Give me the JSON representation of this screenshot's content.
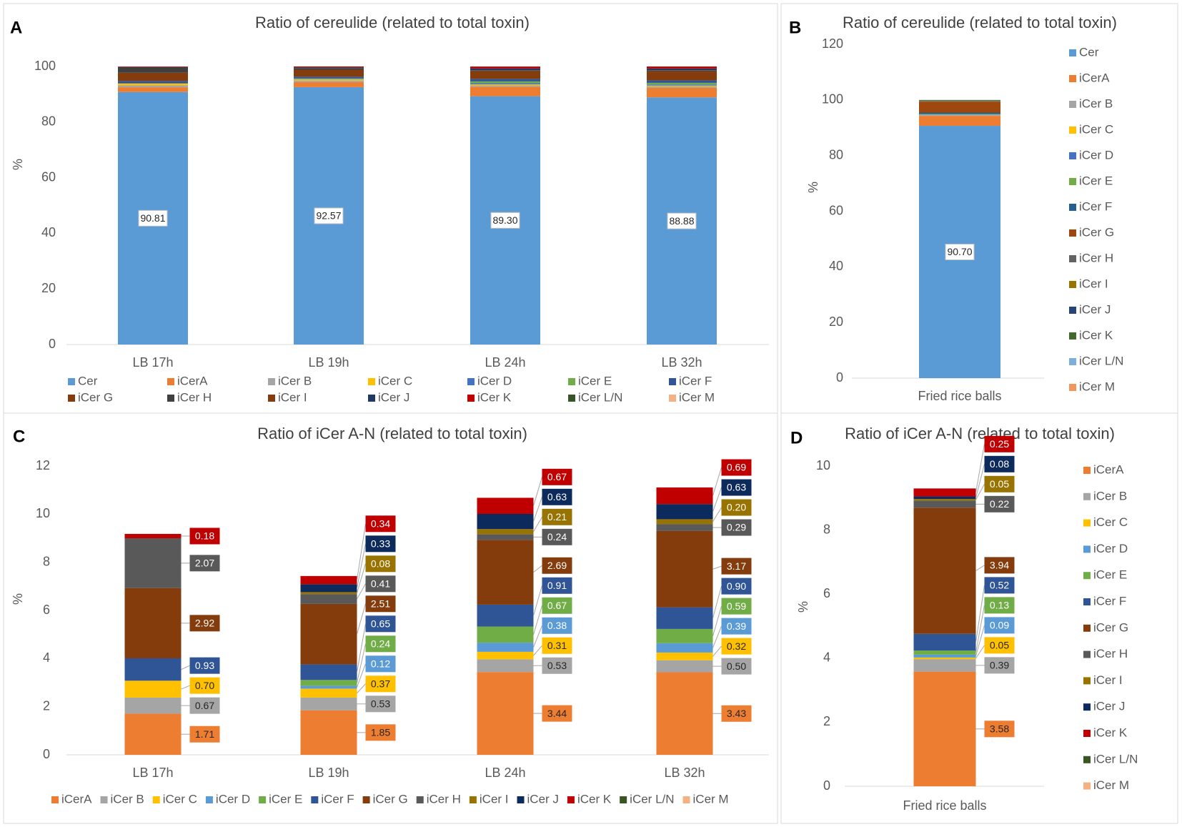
{
  "chart_data": [
    {
      "type": "bar",
      "stacked": true,
      "panel": "A",
      "title": "Ratio of cereulide (related to total toxin)",
      "y_label": "%",
      "categories": [
        "LB 17h",
        "LB 19h",
        "LB 24h",
        "LB 32h"
      ],
      "ylim": [
        0,
        100
      ],
      "yticks": [
        0,
        20,
        40,
        60,
        80,
        100
      ],
      "grid": false,
      "legend": "bottom",
      "series": [
        {
          "name": "Cer",
          "color": "#5b9bd5",
          "values": [
            90.81,
            92.57,
            89.3,
            88.88
          ],
          "value_labels": [
            "90.81",
            "92.57",
            "89.30",
            "88.88"
          ]
        },
        {
          "name": "iCerA",
          "color": "#ed7d31",
          "values": [
            1.71,
            1.85,
            3.44,
            3.43
          ]
        },
        {
          "name": "iCer B",
          "color": "#a5a5a5",
          "values": [
            0.67,
            0.53,
            0.53,
            0.5
          ]
        },
        {
          "name": "iCer C",
          "color": "#ffc000",
          "values": [
            0.7,
            0.37,
            0.31,
            0.32
          ]
        },
        {
          "name": "iCer D",
          "color": "#4472c4",
          "values": [
            0,
            0.12,
            0.38,
            0.39
          ]
        },
        {
          "name": "iCer E",
          "color": "#70ad47",
          "values": [
            0,
            0.24,
            0.67,
            0.59
          ]
        },
        {
          "name": "iCer F",
          "color": "#2f5597",
          "values": [
            0.93,
            0.65,
            0.91,
            0.9
          ]
        },
        {
          "name": "iCer G",
          "color": "#843c0c",
          "values": [
            2.92,
            2.51,
            2.69,
            3.17
          ]
        },
        {
          "name": "iCer H",
          "color": "#404040",
          "values": [
            2.07,
            0.41,
            0.24,
            0.29
          ]
        },
        {
          "name": "iCer I",
          "color": "#843c0c",
          "values": [
            0,
            0.08,
            0.21,
            0.2
          ]
        },
        {
          "name": "iCer J",
          "color": "#1f3864",
          "values": [
            0,
            0.33,
            0.63,
            0.63
          ]
        },
        {
          "name": "iCer K",
          "color": "#c00000",
          "values": [
            0.18,
            0.34,
            0.67,
            0.69
          ]
        },
        {
          "name": "iCer L/N",
          "color": "#375623",
          "values": [
            0,
            0,
            0,
            0
          ]
        },
        {
          "name": "iCer M",
          "color": "#f4b183",
          "values": [
            0,
            0,
            0,
            0
          ]
        }
      ]
    },
    {
      "type": "bar",
      "stacked": true,
      "panel": "B",
      "title": "Ratio of cereulide (related to total toxin)",
      "y_label": "%",
      "categories": [
        "Fried rice balls"
      ],
      "ylim": [
        0,
        120
      ],
      "yticks": [
        0,
        20,
        40,
        60,
        80,
        100,
        120
      ],
      "grid": false,
      "legend": "right",
      "series": [
        {
          "name": "Cer",
          "color": "#5b9bd5",
          "values": [
            90.7
          ],
          "value_labels": [
            "90.70"
          ]
        },
        {
          "name": "iCerA",
          "color": "#ed7d31",
          "values": [
            3.58
          ]
        },
        {
          "name": "iCer B",
          "color": "#a5a5a5",
          "values": [
            0.39
          ]
        },
        {
          "name": "iCer C",
          "color": "#ffc000",
          "values": [
            0.05
          ]
        },
        {
          "name": "iCer D",
          "color": "#4472c4",
          "values": [
            0.09
          ]
        },
        {
          "name": "iCer E",
          "color": "#70ad47",
          "values": [
            0.13
          ]
        },
        {
          "name": "iCer F",
          "color": "#255e91",
          "values": [
            0.52
          ]
        },
        {
          "name": "iCer G",
          "color": "#9e480e",
          "values": [
            3.94
          ]
        },
        {
          "name": "iCer H",
          "color": "#636363",
          "values": [
            0.22
          ]
        },
        {
          "name": "iCer I",
          "color": "#997300",
          "values": [
            0.05
          ]
        },
        {
          "name": "iCer J",
          "color": "#264478",
          "values": [
            0.08
          ]
        },
        {
          "name": "iCer K",
          "color": "#43682b",
          "values": [
            0.25
          ]
        },
        {
          "name": "iCer L/N",
          "color": "#7cafdd",
          "values": [
            0
          ]
        },
        {
          "name": "iCer M",
          "color": "#f1975a",
          "values": [
            0
          ]
        }
      ]
    },
    {
      "type": "bar",
      "stacked": true,
      "panel": "C",
      "title": "Ratio of iCer A-N (related to total toxin)",
      "y_label": "%",
      "categories": [
        "LB 17h",
        "LB 19h",
        "LB 24h",
        "LB 32h"
      ],
      "ylim": [
        0,
        12
      ],
      "yticks": [
        0,
        2,
        4,
        6,
        8,
        10,
        12
      ],
      "grid": false,
      "legend": "bottom",
      "series": [
        {
          "name": "iCerA",
          "color": "#ed7d31",
          "values": [
            1.71,
            1.85,
            3.44,
            3.43
          ],
          "value_labels": [
            "1.71",
            "1.85",
            "3.44",
            "3.43"
          ]
        },
        {
          "name": "iCer B",
          "color": "#a5a5a5",
          "values": [
            0.67,
            0.53,
            0.53,
            0.5
          ],
          "value_labels": [
            "0.67",
            "0.53",
            "0.53",
            "0.50"
          ]
        },
        {
          "name": "iCer C",
          "color": "#ffc000",
          "values": [
            0.7,
            0.37,
            0.31,
            0.32
          ],
          "value_labels": [
            "0.70",
            "0.37",
            "0.31",
            "0.32"
          ]
        },
        {
          "name": "iCer D",
          "color": "#5b9bd5",
          "values": [
            0,
            0.12,
            0.38,
            0.39
          ],
          "value_labels": [
            null,
            "0.12",
            "0.38",
            "0.39"
          ]
        },
        {
          "name": "iCer E",
          "color": "#70ad47",
          "values": [
            0,
            0.24,
            0.67,
            0.59
          ],
          "value_labels": [
            null,
            "0.24",
            "0.67",
            "0.59"
          ]
        },
        {
          "name": "iCer F",
          "color": "#2f5597",
          "values": [
            0.93,
            0.65,
            0.91,
            0.9
          ],
          "value_labels": [
            "0.93",
            "0.65",
            "0.91",
            "0.90"
          ]
        },
        {
          "name": "iCer G",
          "color": "#843c0c",
          "values": [
            2.92,
            2.51,
            2.69,
            3.17
          ],
          "value_labels": [
            "2.92",
            "2.51",
            "2.69",
            "3.17"
          ]
        },
        {
          "name": "iCer H",
          "color": "#595959",
          "values": [
            2.07,
            0.41,
            0.24,
            0.29
          ],
          "value_labels": [
            "2.07",
            "0.41",
            "0.24",
            "0.29"
          ]
        },
        {
          "name": "iCer I",
          "color": "#997300",
          "values": [
            0,
            0.08,
            0.21,
            0.2
          ],
          "value_labels": [
            null,
            "0.08",
            "0.21",
            "0.20"
          ]
        },
        {
          "name": "iCer J",
          "color": "#0d2a5c",
          "values": [
            0,
            0.33,
            0.63,
            0.63
          ],
          "value_labels": [
            null,
            "0.33",
            "0.63",
            "0.63"
          ]
        },
        {
          "name": "iCer K",
          "color": "#c00000",
          "values": [
            0.18,
            0.34,
            0.67,
            0.69
          ],
          "value_labels": [
            "0.18",
            "0.34",
            "0.67",
            "0.69"
          ]
        },
        {
          "name": "iCer L/N",
          "color": "#375623",
          "values": [
            0,
            0,
            0,
            0
          ]
        },
        {
          "name": "iCer M",
          "color": "#f4b183",
          "values": [
            0,
            0,
            0,
            0
          ]
        }
      ]
    },
    {
      "type": "bar",
      "stacked": true,
      "panel": "D",
      "title": "Ratio of iCer A-N (related to total toxin)",
      "y_label": "%",
      "categories": [
        "Fried rice balls"
      ],
      "ylim": [
        0,
        10
      ],
      "yticks": [
        0,
        2,
        4,
        6,
        8,
        10
      ],
      "grid": false,
      "legend": "right",
      "series": [
        {
          "name": "iCerA",
          "color": "#ed7d31",
          "values": [
            3.58
          ],
          "value_labels": [
            "3.58"
          ]
        },
        {
          "name": "iCer B",
          "color": "#a5a5a5",
          "values": [
            0.39
          ],
          "value_labels": [
            "0.39"
          ]
        },
        {
          "name": "iCer C",
          "color": "#ffc000",
          "values": [
            0.05
          ],
          "value_labels": [
            "0.05"
          ]
        },
        {
          "name": "iCer D",
          "color": "#5b9bd5",
          "values": [
            0.09
          ],
          "value_labels": [
            "0.09"
          ]
        },
        {
          "name": "iCer E",
          "color": "#70ad47",
          "values": [
            0.13
          ],
          "value_labels": [
            "0.13"
          ]
        },
        {
          "name": "iCer F",
          "color": "#2f5597",
          "values": [
            0.52
          ],
          "value_labels": [
            "0.52"
          ]
        },
        {
          "name": "iCer G",
          "color": "#843c0c",
          "values": [
            3.94
          ],
          "value_labels": [
            "3.94"
          ]
        },
        {
          "name": "iCer H",
          "color": "#595959",
          "values": [
            0.22
          ],
          "value_labels": [
            "0.22"
          ]
        },
        {
          "name": "iCer I",
          "color": "#997300",
          "values": [
            0.05
          ],
          "value_labels": [
            "0.05"
          ]
        },
        {
          "name": "iCer J",
          "color": "#0d2a5c",
          "values": [
            0.08
          ],
          "value_labels": [
            "0.08"
          ]
        },
        {
          "name": "iCer K",
          "color": "#c00000",
          "values": [
            0.25
          ],
          "value_labels": [
            "0.25"
          ]
        },
        {
          "name": "iCer L/N",
          "color": "#375623",
          "values": [
            0
          ]
        },
        {
          "name": "iCer M",
          "color": "#f4b183",
          "values": [
            0
          ]
        }
      ]
    }
  ]
}
